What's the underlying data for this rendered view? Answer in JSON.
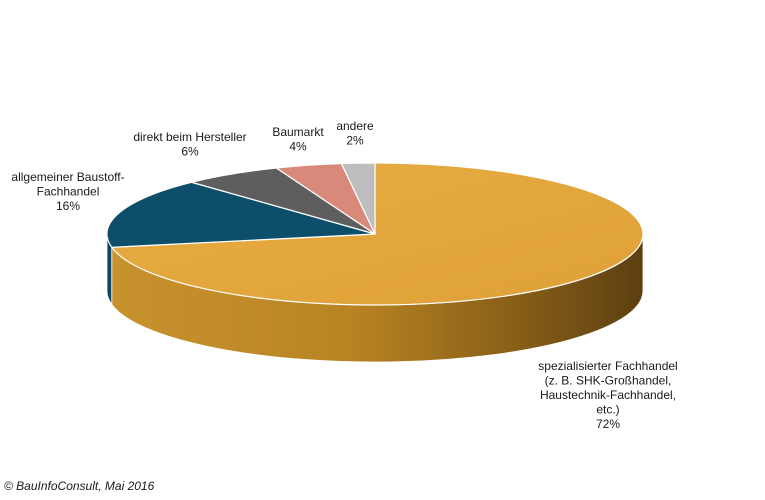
{
  "chart_data": {
    "type": "pie",
    "style": "3d",
    "slices": [
      {
        "label": [
          "spezialisierter Fachhandel",
          "(z. B. SHK-Großhandel,",
          "Haustechnik-Fachhandel,",
          "etc.)"
        ],
        "value_label": "72%",
        "value": 72,
        "color": "#E0A43A"
      },
      {
        "label": [
          "allgemeiner Baustoff-",
          "Fachhandel"
        ],
        "value_label": "16%",
        "value": 16,
        "color": "#0D4F6B"
      },
      {
        "label": [
          "direkt beim Hersteller"
        ],
        "value_label": "6%",
        "value": 6,
        "color": "#5E5E5E"
      },
      {
        "label": [
          "Baumarkt"
        ],
        "value_label": "4%",
        "value": 4,
        "color": "#D9897A"
      },
      {
        "label": [
          "andere"
        ],
        "value_label": "2%",
        "value": 2,
        "color": "#BDBDBD"
      }
    ]
  },
  "footer": {
    "copyright": "© BauInfoConsult, Mai 2016"
  }
}
